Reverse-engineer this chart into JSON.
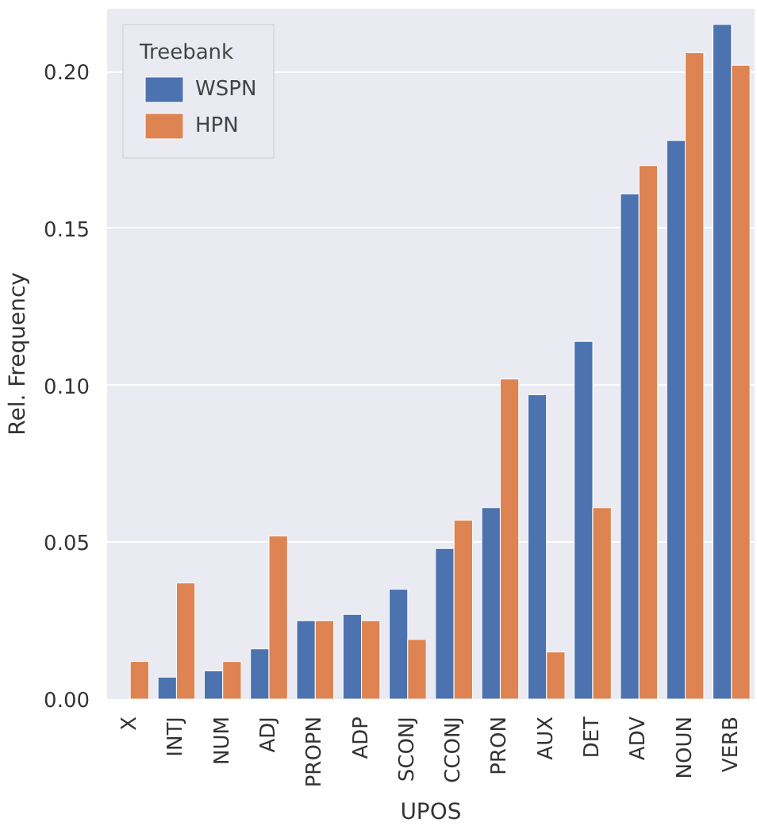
{
  "chart_data": {
    "type": "bar",
    "xlabel": "UPOS",
    "ylabel": "Rel. Frequency",
    "legend_title": "Treebank",
    "categories": [
      "X",
      "INTJ",
      "NUM",
      "ADJ",
      "PROPN",
      "ADP",
      "SCONJ",
      "CCONJ",
      "PRON",
      "AUX",
      "DET",
      "ADV",
      "NOUN",
      "VERB"
    ],
    "series": [
      {
        "name": "WSPN",
        "color": "#4c72b0",
        "values": [
          null,
          0.007,
          0.009,
          0.016,
          0.025,
          0.027,
          0.035,
          0.048,
          0.061,
          0.097,
          0.114,
          0.161,
          0.178,
          0.215
        ]
      },
      {
        "name": "HPN",
        "color": "#dd8452",
        "values": [
          0.012,
          0.037,
          0.012,
          0.052,
          0.025,
          0.025,
          0.019,
          0.057,
          0.102,
          0.015,
          0.061,
          0.17,
          0.206,
          0.202
        ]
      }
    ],
    "ylim": [
      0,
      0.22
    ],
    "yticks": [
      {
        "value": 0,
        "label": "0.00"
      },
      {
        "value": 0.05,
        "label": "0.05"
      },
      {
        "value": 0.1,
        "label": "0.10"
      },
      {
        "value": 0.15,
        "label": "0.15"
      },
      {
        "value": 0.2,
        "label": "0.20"
      }
    ],
    "grid": "y",
    "legend": "top left"
  }
}
